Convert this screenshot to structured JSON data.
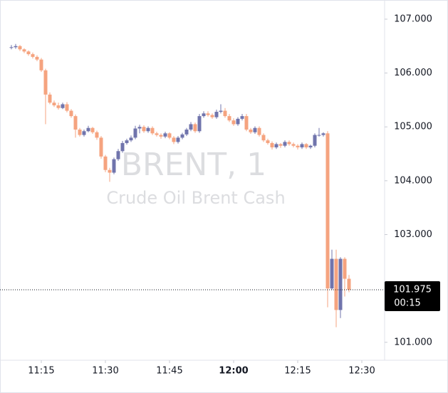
{
  "chart_data": {
    "type": "candlestick",
    "title": "BRENT, 1",
    "subtitle": "Crude Oil Brent Cash",
    "up_color": "#7074ac",
    "down_color": "#f5a37f",
    "countdown": "00:15",
    "x": [
      668,
      669,
      670,
      671,
      672,
      673,
      674,
      675,
      676,
      677,
      678,
      679,
      680,
      681,
      682,
      683,
      684,
      685,
      686,
      687,
      688,
      689,
      690,
      691,
      692,
      693,
      694,
      695,
      696,
      697,
      698,
      699,
      700,
      701,
      702,
      703,
      704,
      705,
      706,
      707,
      708,
      709,
      710,
      711,
      712,
      713,
      714,
      715,
      716,
      717,
      718,
      719,
      720,
      721,
      722,
      723,
      724,
      725,
      726,
      727,
      728,
      729,
      730,
      731,
      732,
      733,
      734,
      735,
      736,
      737,
      738,
      739,
      740,
      741,
      742,
      743,
      744,
      745,
      746,
      747
    ],
    "open": [
      106.47,
      106.48,
      106.5,
      106.44,
      106.4,
      106.35,
      106.3,
      106.25,
      106.05,
      105.6,
      105.45,
      105.4,
      105.35,
      105.42,
      105.3,
      105.2,
      104.95,
      104.85,
      104.92,
      104.98,
      104.9,
      104.8,
      104.45,
      104.2,
      104.15,
      104.4,
      104.55,
      104.7,
      104.75,
      104.8,
      104.97,
      105.0,
      104.92,
      104.98,
      104.88,
      104.85,
      104.82,
      104.88,
      104.8,
      104.72,
      104.8,
      104.86,
      104.95,
      105.05,
      104.92,
      105.2,
      105.25,
      105.22,
      105.18,
      105.28,
      105.3,
      105.2,
      105.12,
      105.05,
      105.15,
      105.2,
      104.95,
      104.9,
      104.98,
      104.85,
      104.75,
      104.7,
      104.62,
      104.68,
      104.65,
      104.72,
      104.68,
      104.65,
      104.62,
      104.68,
      104.62,
      104.65,
      104.85,
      104.85,
      104.88,
      102.0,
      102.55,
      101.6,
      102.55,
      102.18
    ],
    "high": [
      106.52,
      106.54,
      106.52,
      106.46,
      106.42,
      106.38,
      106.33,
      106.28,
      106.08,
      105.64,
      105.49,
      105.45,
      105.45,
      105.46,
      105.33,
      105.23,
      104.98,
      104.95,
      105.02,
      105.0,
      104.93,
      104.83,
      104.48,
      104.24,
      104.43,
      104.59,
      104.74,
      104.78,
      104.84,
      105.02,
      105.04,
      105.03,
      105.01,
      105.01,
      104.91,
      104.88,
      104.91,
      104.9,
      104.83,
      104.83,
      104.89,
      104.98,
      105.09,
      105.08,
      105.24,
      105.29,
      105.29,
      105.25,
      105.32,
      105.42,
      105.35,
      105.24,
      105.16,
      105.18,
      105.24,
      105.24,
      104.98,
      105.01,
      105.01,
      104.88,
      104.78,
      104.73,
      104.71,
      104.7,
      104.75,
      104.75,
      104.71,
      104.68,
      104.71,
      104.7,
      104.67,
      104.88,
      104.98,
      104.9,
      104.92,
      102.72,
      102.72,
      102.58,
      102.58,
      102.25
    ],
    "low": [
      106.44,
      106.45,
      106.41,
      106.37,
      106.32,
      106.27,
      106.22,
      106.02,
      105.05,
      105.42,
      105.37,
      105.32,
      105.33,
      105.27,
      105.17,
      104.8,
      104.82,
      104.82,
      104.9,
      104.87,
      104.76,
      104.41,
      104.16,
      103.98,
      104.12,
      104.37,
      104.52,
      104.67,
      104.72,
      104.77,
      104.88,
      104.89,
      104.89,
      104.85,
      104.82,
      104.78,
      104.79,
      104.77,
      104.68,
      104.69,
      104.77,
      104.83,
      104.92,
      104.89,
      104.89,
      105.17,
      105.19,
      105.15,
      105.15,
      105.25,
      105.17,
      105.09,
      105.02,
      105.02,
      105.12,
      104.92,
      104.87,
      104.87,
      104.82,
      104.72,
      104.67,
      104.58,
      104.59,
      104.61,
      104.62,
      104.65,
      104.62,
      104.58,
      104.59,
      104.59,
      104.59,
      104.62,
      104.82,
      104.82,
      101.65,
      101.97,
      101.28,
      101.45,
      101.85,
      101.93
    ],
    "close": [
      106.48,
      106.5,
      106.44,
      106.4,
      106.35,
      106.3,
      106.25,
      106.05,
      105.6,
      105.45,
      105.4,
      105.35,
      105.42,
      105.3,
      105.2,
      104.95,
      104.85,
      104.92,
      104.98,
      104.9,
      104.8,
      104.45,
      104.2,
      104.15,
      104.4,
      104.55,
      104.7,
      104.75,
      104.8,
      104.97,
      105.0,
      104.92,
      104.98,
      104.88,
      104.85,
      104.82,
      104.88,
      104.8,
      104.72,
      104.8,
      104.86,
      104.95,
      105.05,
      104.92,
      105.2,
      105.25,
      105.22,
      105.18,
      105.28,
      105.3,
      105.2,
      105.12,
      105.05,
      105.15,
      105.2,
      104.95,
      104.9,
      104.98,
      104.85,
      104.75,
      104.7,
      104.62,
      104.68,
      104.65,
      104.72,
      104.68,
      104.65,
      104.62,
      104.68,
      104.62,
      104.65,
      104.85,
      104.85,
      104.88,
      102.0,
      102.55,
      101.6,
      102.55,
      102.18,
      101.975
    ],
    "xlim": [
      666.67,
      754.5
    ],
    "xticks": [
      {
        "value": 675,
        "label": "11:15"
      },
      {
        "value": 690,
        "label": "11:30"
      },
      {
        "value": 705,
        "label": "11:45"
      },
      {
        "value": 720,
        "label": "12:00"
      },
      {
        "value": 735,
        "label": "12:15"
      },
      {
        "value": 750,
        "label": "12:30"
      }
    ],
    "ylim": [
      100.68,
      107.29
    ],
    "yticks": [
      {
        "value": 101,
        "label": "101.000"
      },
      {
        "value": 103,
        "label": "103.000"
      },
      {
        "value": 104,
        "label": "104.000"
      },
      {
        "value": 105,
        "label": "105.000"
      },
      {
        "value": 106,
        "label": "106.000"
      },
      {
        "value": 107,
        "label": "107.000"
      }
    ]
  }
}
